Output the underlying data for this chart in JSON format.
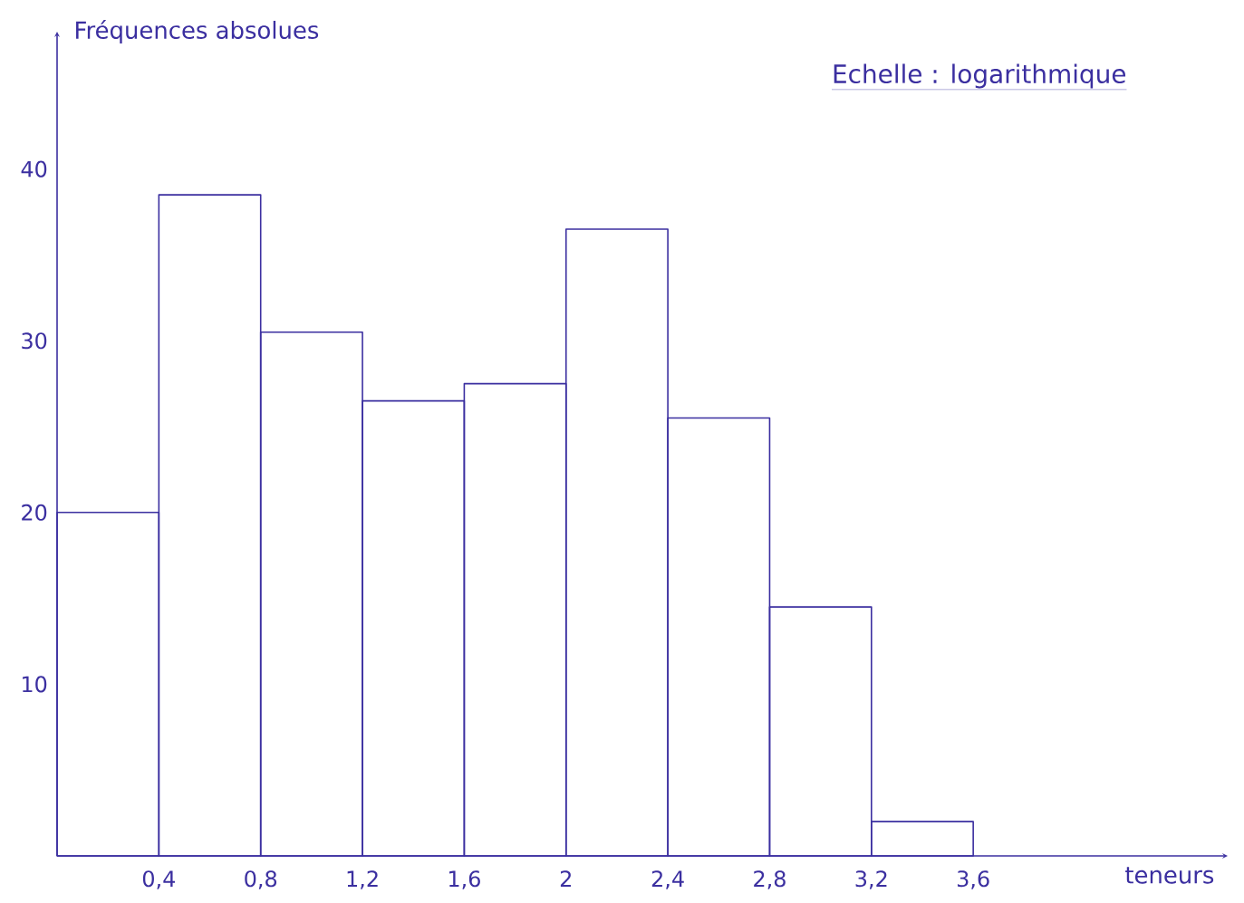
{
  "chart_data": {
    "type": "histogram",
    "xlabel": "teneurs",
    "ylabel": "Fréquences absolues",
    "annotations": [
      "Echelle : logarithmique"
    ],
    "bins": [
      0,
      0.4,
      0.8,
      1.2,
      1.6,
      2,
      2.4,
      2.8,
      3.2,
      3.6
    ],
    "values": [
      20,
      38.5,
      30.5,
      26.5,
      27.5,
      36.5,
      25.5,
      14.5,
      2
    ],
    "color": "#3b2fa0",
    "xlim": [
      0,
      4.6
    ],
    "ylim": [
      0,
      48
    ],
    "xticks": [
      {
        "value": 0.4,
        "label": "0,4"
      },
      {
        "value": 0.8,
        "label": "0,8"
      },
      {
        "value": 1.2,
        "label": "1,2"
      },
      {
        "value": 1.6,
        "label": "1,6"
      },
      2,
      {
        "value": 2.4,
        "label": "2,4"
      },
      {
        "value": 2.8,
        "label": "2,8"
      },
      {
        "value": 3.2,
        "label": "3,2"
      },
      {
        "value": 3.6,
        "label": "3,6"
      }
    ],
    "yticks": [
      10,
      20,
      30,
      40
    ],
    "grid": false
  }
}
